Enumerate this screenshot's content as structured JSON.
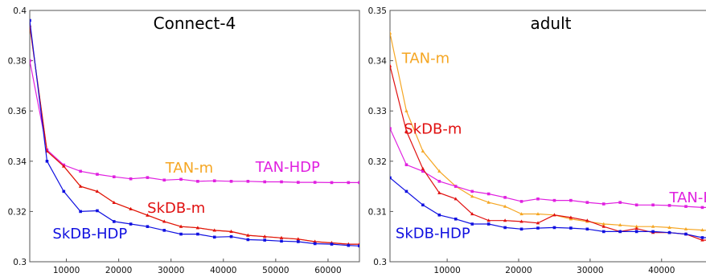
{
  "chart_data": [
    {
      "type": "line",
      "title": "Connect-4",
      "xlabel": "",
      "ylabel": "",
      "xlim": [
        3000,
        66000
      ],
      "ylim": [
        0.3,
        0.4
      ],
      "x_ticks": [
        10000,
        20000,
        30000,
        40000,
        50000,
        60000
      ],
      "y_ticks": [
        0.3,
        0.32,
        0.34,
        0.36,
        0.38,
        0.4
      ],
      "x_tick_labels": [
        "10000",
        "20000",
        "30000",
        "40000",
        "50000",
        "60000"
      ],
      "y_tick_labels": [
        "0.3",
        "0.32",
        "0.34",
        "0.36",
        "0.38",
        "0.4"
      ],
      "grid": false,
      "series": [
        {
          "name": "TAN-m",
          "color": "#f5a623",
          "marker": "triangle",
          "label_pos": [
            33500,
            0.3355
          ],
          "x": [
            3000,
            6300,
            9500,
            12700,
            15900,
            19100,
            22300,
            25500,
            28700,
            31900,
            35100,
            38300,
            41500,
            44700,
            47900,
            51100,
            54300,
            57500,
            60700,
            63900,
            66000
          ],
          "y": [
            0.394,
            0.344,
            0.338,
            0.33,
            0.328,
            0.3235,
            0.321,
            0.3185,
            0.316,
            0.314,
            0.3135,
            0.3125,
            0.312,
            0.3105,
            0.31,
            0.3095,
            0.309,
            0.308,
            0.3075,
            0.307,
            0.307
          ]
        },
        {
          "name": "TAN-HDP",
          "color": "#e020e0",
          "marker": "square",
          "label_pos": [
            52300,
            0.3358
          ],
          "x": [
            3000,
            6300,
            9500,
            12700,
            15900,
            19100,
            22300,
            25500,
            28700,
            31900,
            35100,
            38300,
            41500,
            44700,
            47900,
            51100,
            54300,
            57500,
            60700,
            63900,
            66000
          ],
          "y": [
            0.38,
            0.3445,
            0.3385,
            0.336,
            0.3348,
            0.3338,
            0.333,
            0.3335,
            0.3325,
            0.3328,
            0.332,
            0.3322,
            0.332,
            0.332,
            0.3318,
            0.3318,
            0.3316,
            0.3316,
            0.3315,
            0.3315,
            0.3315
          ]
        },
        {
          "name": "SkDB-m",
          "color": "#e01010",
          "marker": "triangle",
          "label_pos": [
            31000,
            0.3195
          ],
          "x": [
            3000,
            6300,
            9500,
            12700,
            15900,
            19100,
            22300,
            25500,
            28700,
            31900,
            35100,
            38300,
            41500,
            44700,
            47900,
            51100,
            54300,
            57500,
            60700,
            63900,
            66000
          ],
          "y": [
            0.394,
            0.344,
            0.338,
            0.33,
            0.328,
            0.3235,
            0.321,
            0.3185,
            0.316,
            0.314,
            0.3135,
            0.3125,
            0.312,
            0.3105,
            0.31,
            0.3095,
            0.309,
            0.308,
            0.3075,
            0.307,
            0.307
          ]
        },
        {
          "name": "SkDB-HDP",
          "color": "#1010e0",
          "marker": "square",
          "label_pos": [
            14500,
            0.3093
          ],
          "x": [
            3000,
            6300,
            9500,
            12700,
            15900,
            19100,
            22300,
            25500,
            28700,
            31900,
            35100,
            38300,
            41500,
            44700,
            47900,
            51100,
            54300,
            57500,
            60700,
            63900,
            66000
          ],
          "y": [
            0.396,
            0.34,
            0.328,
            0.32,
            0.3203,
            0.316,
            0.315,
            0.314,
            0.3125,
            0.311,
            0.311,
            0.3098,
            0.31,
            0.3088,
            0.3086,
            0.3082,
            0.308,
            0.3072,
            0.307,
            0.3065,
            0.3063
          ]
        }
      ]
    },
    {
      "type": "line",
      "title": "adult",
      "xlabel": "",
      "ylabel": "",
      "xlim": [
        2000,
        47000
      ],
      "ylim": [
        0.3,
        0.35
      ],
      "x_ticks": [
        10000,
        20000,
        30000,
        40000
      ],
      "y_ticks": [
        0.3,
        0.31,
        0.32,
        0.33,
        0.34,
        0.35
      ],
      "x_tick_labels": [
        "10000",
        "20000",
        "30000",
        "40000"
      ],
      "y_tick_labels": [
        "0.3",
        "0.31",
        "0.32",
        "0.33",
        "0.34",
        "0.35"
      ],
      "grid": false,
      "series": [
        {
          "name": "TAN-m",
          "color": "#f5a623",
          "marker": "triangle",
          "label_pos": [
            7000,
            0.3395
          ],
          "x": [
            2000,
            4300,
            6600,
            8900,
            11200,
            13500,
            15800,
            18100,
            20400,
            22700,
            25000,
            27300,
            29600,
            31900,
            34200,
            36500,
            38800,
            41100,
            43400,
            45700,
            47000
          ],
          "y": [
            0.3455,
            0.33,
            0.322,
            0.318,
            0.315,
            0.313,
            0.3118,
            0.311,
            0.3095,
            0.3095,
            0.3093,
            0.3085,
            0.308,
            0.3075,
            0.3073,
            0.307,
            0.307,
            0.3068,
            0.3065,
            0.3063,
            0.3062
          ]
        },
        {
          "name": "TAN-HDP",
          "color": "#e020e0",
          "marker": "square",
          "label_pos": [
            45600,
            0.3118
          ],
          "x": [
            2000,
            4300,
            6600,
            8900,
            11200,
            13500,
            15800,
            18100,
            20400,
            22700,
            25000,
            27300,
            29600,
            31900,
            34200,
            36500,
            38800,
            41100,
            43400,
            45700,
            47000
          ],
          "y": [
            0.3265,
            0.3193,
            0.318,
            0.316,
            0.315,
            0.314,
            0.3135,
            0.3128,
            0.312,
            0.3125,
            0.3122,
            0.3122,
            0.3118,
            0.3115,
            0.3118,
            0.3113,
            0.3113,
            0.3112,
            0.311,
            0.3108,
            0.3108
          ]
        },
        {
          "name": "SkDB-m",
          "color": "#e01010",
          "marker": "triangle",
          "label_pos": [
            8000,
            0.3255
          ],
          "x": [
            2000,
            4300,
            6600,
            8900,
            11200,
            13500,
            15800,
            18100,
            20400,
            22700,
            25000,
            27300,
            29600,
            31900,
            34200,
            36500,
            38800,
            41100,
            43400,
            45700,
            47000
          ],
          "y": [
            0.339,
            0.326,
            0.3185,
            0.3137,
            0.3125,
            0.3095,
            0.3082,
            0.3082,
            0.308,
            0.3077,
            0.3093,
            0.3088,
            0.3082,
            0.307,
            0.306,
            0.3066,
            0.3058,
            0.3058,
            0.3055,
            0.3043,
            0.3043
          ]
        },
        {
          "name": "SkDB-HDP",
          "color": "#1010e0",
          "marker": "square",
          "label_pos": [
            8000,
            0.3047
          ],
          "x": [
            2000,
            4300,
            6600,
            8900,
            11200,
            13500,
            15800,
            18100,
            20400,
            22700,
            25000,
            27300,
            29600,
            31900,
            34200,
            36500,
            38800,
            41100,
            43400,
            45700,
            47000
          ],
          "y": [
            0.3167,
            0.314,
            0.3113,
            0.3093,
            0.3085,
            0.3075,
            0.3075,
            0.3068,
            0.3065,
            0.3067,
            0.3068,
            0.3067,
            0.3065,
            0.306,
            0.306,
            0.306,
            0.306,
            0.3058,
            0.3055,
            0.3048,
            0.3048
          ]
        }
      ]
    }
  ]
}
